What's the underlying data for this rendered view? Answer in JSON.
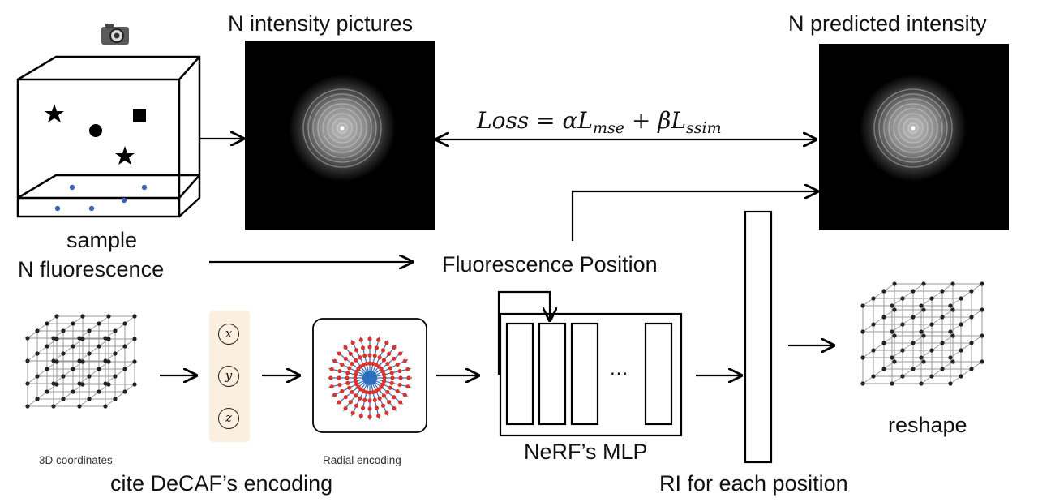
{
  "labels": {
    "intensity_pictures": "N intensity pictures",
    "predicted_intensity": "N predicted intensity",
    "sample": "sample",
    "n_fluorescence": "N fluorescence",
    "fluorescence_position": "Fluorescence Position",
    "coords_3d": "3D coordinates",
    "radial_encoding": "Radial encoding",
    "decaf_encoding": "cite DeCAF’s encoding",
    "nerf_mlp": "NeRF’s MLP",
    "ri_each_position": "RI for each position",
    "reshape": "reshape",
    "mlp_ellipsis": "..."
  },
  "loss": {
    "lhs": "Loss",
    "eq": " = ",
    "alpha": "α",
    "l1": "L",
    "mse": "mse",
    "plus": " + ",
    "beta": "β",
    "l2": "L",
    "ssim": "ssim"
  },
  "encoding_vars": [
    "x",
    "y",
    "z"
  ],
  "icons": {
    "camera": "camera-icon"
  },
  "colors": {
    "fluorophore_dot": "#3a66b5",
    "radial_red": "#d9342b",
    "radial_blue": "#2f6fbf",
    "encoding_panel": "#fbf0df"
  }
}
